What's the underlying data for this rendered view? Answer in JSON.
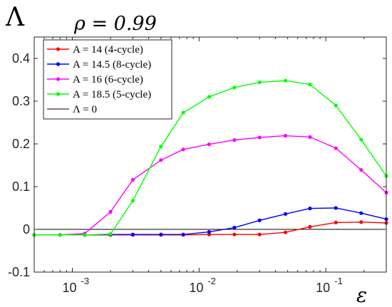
{
  "chart_data": {
    "type": "line",
    "title": "ρ = 0.99",
    "ylabel": "Λ",
    "xlabel": "ε",
    "xscale": "log",
    "xlim": [
      0.0005,
      0.3
    ],
    "ylim": [
      -0.1,
      0.45
    ],
    "xticks": [
      0.001,
      0.01,
      0.1
    ],
    "xtick_labels": [
      {
        "base": "10",
        "exp": "-3"
      },
      {
        "base": "10",
        "exp": "-2"
      },
      {
        "base": "10",
        "exp": "-1"
      }
    ],
    "yticks": [
      -0.1,
      0,
      0.1,
      0.2,
      0.3,
      0.4
    ],
    "ytick_labels": [
      "-0.1",
      "0",
      "0.1",
      "0.2",
      "0.3",
      "0.4"
    ],
    "grid": false,
    "legend_position": "top-left",
    "x": [
      0.0005,
      0.0008,
      0.00125,
      0.002,
      0.003,
      0.005,
      0.0075,
      0.012,
      0.019,
      0.03,
      0.048,
      0.075,
      0.12,
      0.19,
      0.3
    ],
    "series": [
      {
        "name": "A = 14 (4-cycle)",
        "color": "#ff0000",
        "values": [
          -0.013,
          -0.013,
          -0.013,
          -0.013,
          -0.013,
          -0.013,
          -0.013,
          -0.012,
          -0.012,
          -0.012,
          -0.007,
          0.006,
          0.016,
          0.017,
          0.015
        ]
      },
      {
        "name": "A = 14.5 (8-cycle)",
        "color": "#0000ff",
        "values": [
          -0.013,
          -0.013,
          -0.013,
          -0.012,
          -0.012,
          -0.012,
          -0.012,
          -0.006,
          0.004,
          0.021,
          0.036,
          0.049,
          0.05,
          0.038,
          0.024
        ]
      },
      {
        "name": "A = 16 (6-cycle)",
        "color": "#ff00ff",
        "values": [
          -0.013,
          -0.013,
          -0.01,
          0.041,
          0.116,
          0.162,
          0.187,
          0.199,
          0.209,
          0.215,
          0.219,
          0.216,
          0.19,
          0.139,
          0.086
        ]
      },
      {
        "name": "A = 18.5 (5-cycle)",
        "color": "#00ff00",
        "values": [
          -0.013,
          -0.013,
          -0.013,
          -0.011,
          0.067,
          0.194,
          0.273,
          0.31,
          0.332,
          0.344,
          0.348,
          0.339,
          0.29,
          0.21,
          0.125
        ]
      }
    ],
    "reference_line": {
      "name": "Λ = 0",
      "y": 0,
      "color": "#000000"
    }
  }
}
